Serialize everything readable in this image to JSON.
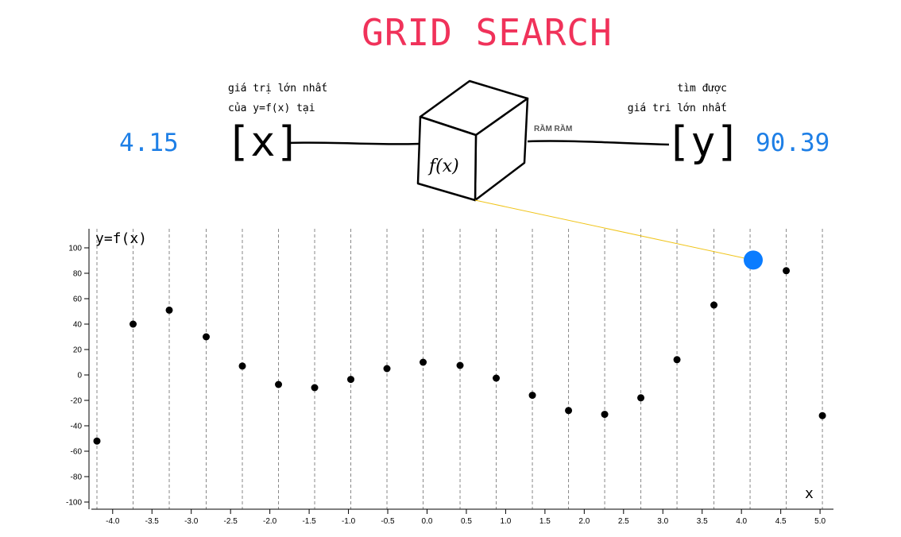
{
  "title": "GRID SEARCH",
  "colors": {
    "title": "#f0325a",
    "value": "#1e7fe6",
    "highlight": "#0a7cff",
    "connector": "#f0c419"
  },
  "left_note": {
    "line1": "giá trị lớn nhất",
    "line2": "của y=f(x) tại"
  },
  "right_note": {
    "line1": "tìm được",
    "line2": "giá tri lớn nhất"
  },
  "x_value": "4.15",
  "y_value": "90.39",
  "x_bracket": "[x]",
  "y_bracket": "[y]",
  "box_label": "f(x)",
  "arrow_label": "RẦM RẦM",
  "chart_data": {
    "type": "scatter",
    "xlabel": "x",
    "ylabel": "y=f(x)",
    "xlim": [
      -4.2,
      5.1
    ],
    "ylim": [
      -100,
      100
    ],
    "x_ticks": [
      "-4.0",
      "-3.5",
      "-3.0",
      "-2.5",
      "-2.0",
      "-1.5",
      "-1.0",
      "-0.5",
      "0.0",
      "0.5",
      "1.0",
      "1.5",
      "2.0",
      "2.5",
      "3.0",
      "3.5",
      "4.0",
      "4.5",
      "5.0"
    ],
    "x_tick_values": [
      -4.0,
      -3.5,
      -3.0,
      -2.5,
      -2.0,
      -1.5,
      -1.0,
      -0.5,
      0.0,
      0.5,
      1.0,
      1.5,
      2.0,
      2.5,
      3.0,
      3.5,
      4.0,
      4.5,
      5.0
    ],
    "y_ticks": [
      "100",
      "80",
      "60",
      "40",
      "20",
      "0",
      "-20",
      "-40",
      "-60",
      "-80",
      "-100"
    ],
    "y_tick_values": [
      100,
      80,
      60,
      40,
      20,
      0,
      -20,
      -40,
      -60,
      -80,
      -100
    ],
    "grid_x": [
      -4.2,
      -3.74,
      -3.28,
      -2.81,
      -2.35,
      -1.89,
      -1.43,
      -0.97,
      -0.51,
      -0.05,
      0.42,
      0.88,
      1.34,
      1.8,
      2.26,
      2.72,
      3.18,
      3.65,
      4.11,
      4.57,
      5.03
    ],
    "points": [
      {
        "x": -4.2,
        "y": -52
      },
      {
        "x": -3.74,
        "y": 40
      },
      {
        "x": -3.28,
        "y": 51
      },
      {
        "x": -2.81,
        "y": 30
      },
      {
        "x": -2.35,
        "y": 7
      },
      {
        "x": -1.89,
        "y": -7.5
      },
      {
        "x": -1.43,
        "y": -10
      },
      {
        "x": -0.97,
        "y": -3.5
      },
      {
        "x": -0.51,
        "y": 5
      },
      {
        "x": -0.05,
        "y": 10
      },
      {
        "x": 0.42,
        "y": 7.5
      },
      {
        "x": 0.88,
        "y": -2.5
      },
      {
        "x": 1.34,
        "y": -16
      },
      {
        "x": 1.8,
        "y": -28
      },
      {
        "x": 2.26,
        "y": -31
      },
      {
        "x": 2.72,
        "y": -18
      },
      {
        "x": 3.18,
        "y": 12
      },
      {
        "x": 3.65,
        "y": 55
      },
      {
        "x": 4.57,
        "y": 82
      },
      {
        "x": 5.03,
        "y": -32
      }
    ],
    "highlight": {
      "x": 4.15,
      "y": 90.39
    }
  }
}
